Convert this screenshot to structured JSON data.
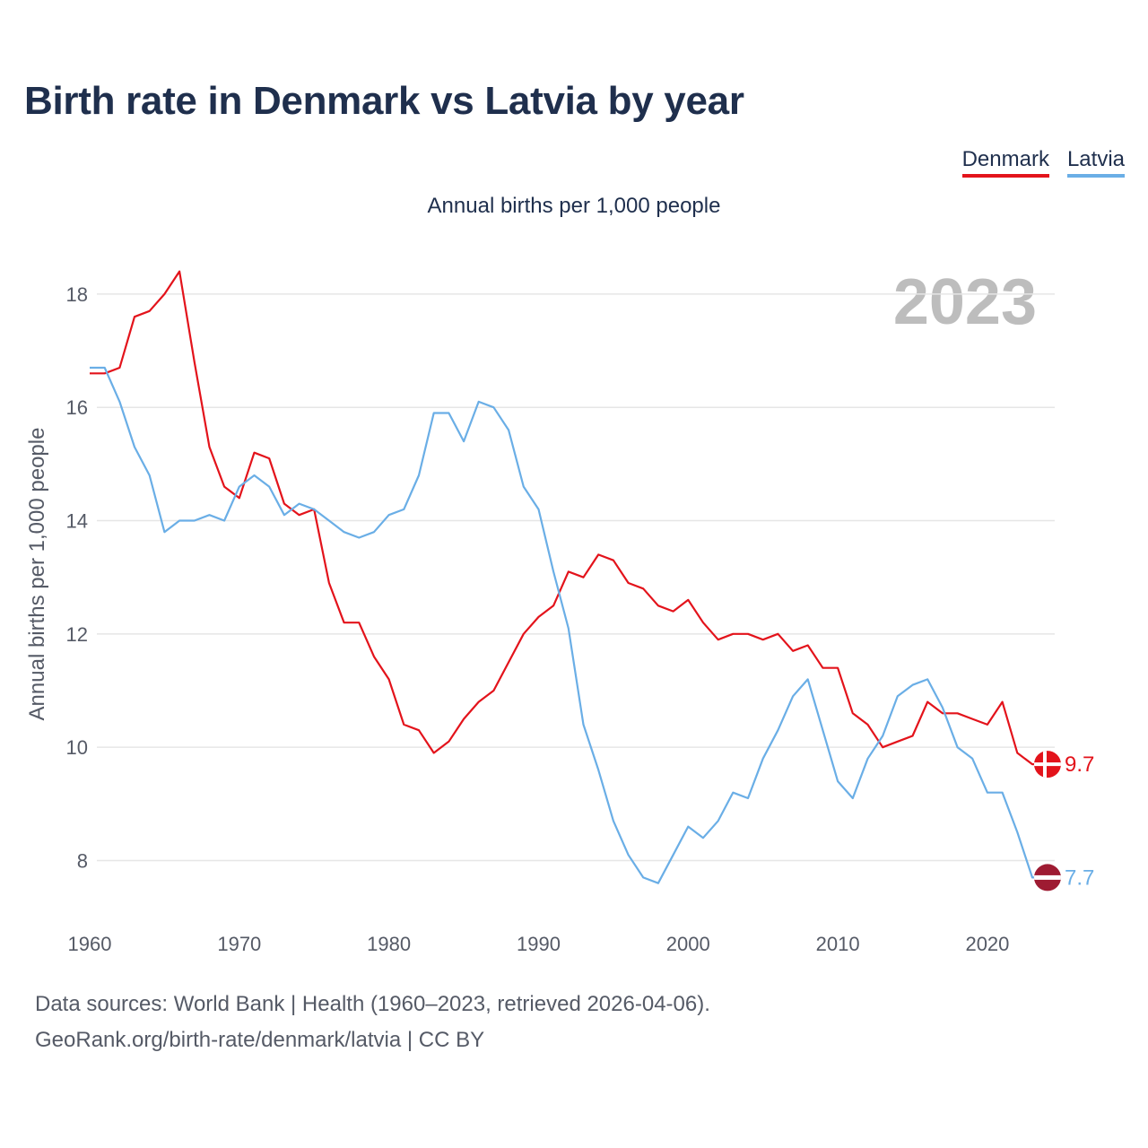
{
  "title": "Birth rate in Denmark vs Latvia by year",
  "legend": [
    {
      "name": "Denmark",
      "color": "#e3131b"
    },
    {
      "name": "Latvia",
      "color": "#6aaee6"
    }
  ],
  "current_year": "2023",
  "source": {
    "line1": "Data sources: World Bank | Health (1960–2023, retrieved 2026-04-06).",
    "line2": "GeoRank.org/birth-rate/denmark/latvia | CC BY"
  },
  "chart_data": {
    "type": "line",
    "title": "Annual births per 1,000 people",
    "xlabel": "",
    "ylabel": "Annual births per 1,000 people",
    "xlim": [
      1960,
      2024.5
    ],
    "ylim": [
      7.2,
      18.6
    ],
    "x_ticks": [
      1960,
      1970,
      1980,
      1990,
      2000,
      2010,
      2020
    ],
    "y_ticks": [
      8,
      10,
      12,
      14,
      16,
      18
    ],
    "grid": true,
    "x": [
      1960,
      1961,
      1962,
      1963,
      1964,
      1965,
      1966,
      1967,
      1968,
      1969,
      1970,
      1971,
      1972,
      1973,
      1974,
      1975,
      1976,
      1977,
      1978,
      1979,
      1980,
      1981,
      1982,
      1983,
      1984,
      1985,
      1986,
      1987,
      1988,
      1989,
      1990,
      1991,
      1992,
      1993,
      1994,
      1995,
      1996,
      1997,
      1998,
      1999,
      2000,
      2001,
      2002,
      2003,
      2004,
      2005,
      2006,
      2007,
      2008,
      2009,
      2010,
      2011,
      2012,
      2013,
      2014,
      2015,
      2016,
      2017,
      2018,
      2019,
      2020,
      2021,
      2022,
      2023
    ],
    "series": [
      {
        "name": "Denmark",
        "color": "#e3131b",
        "end_label": "9.7",
        "values": [
          16.6,
          16.6,
          16.7,
          17.6,
          17.7,
          18.0,
          18.4,
          16.8,
          15.3,
          14.6,
          14.4,
          15.2,
          15.1,
          14.3,
          14.1,
          14.2,
          12.9,
          12.2,
          12.2,
          11.6,
          11.2,
          10.4,
          10.3,
          9.9,
          10.1,
          10.5,
          10.8,
          11.0,
          11.5,
          12.0,
          12.3,
          12.5,
          13.1,
          13.0,
          13.4,
          13.3,
          12.9,
          12.8,
          12.5,
          12.4,
          12.6,
          12.2,
          11.9,
          12.0,
          12.0,
          11.9,
          12.0,
          11.7,
          11.8,
          11.4,
          11.4,
          10.6,
          10.4,
          10.0,
          10.1,
          10.2,
          10.8,
          10.6,
          10.6,
          10.5,
          10.4,
          10.8,
          9.9,
          9.7
        ]
      },
      {
        "name": "Latvia",
        "color": "#6aaee6",
        "end_label": "7.7",
        "values": [
          16.7,
          16.7,
          16.1,
          15.3,
          14.8,
          13.8,
          14.0,
          14.0,
          14.1,
          14.0,
          14.6,
          14.8,
          14.6,
          14.1,
          14.3,
          14.2,
          14.0,
          13.8,
          13.7,
          13.8,
          14.1,
          14.2,
          14.8,
          15.9,
          15.9,
          15.4,
          16.1,
          16.0,
          15.6,
          14.6,
          14.2,
          13.1,
          12.1,
          10.4,
          9.6,
          8.7,
          8.1,
          7.7,
          7.6,
          8.1,
          8.6,
          8.4,
          8.7,
          9.2,
          9.1,
          9.8,
          10.3,
          10.9,
          11.2,
          10.3,
          9.4,
          9.1,
          9.8,
          10.2,
          10.9,
          11.1,
          11.2,
          10.7,
          10.0,
          9.8,
          9.2,
          9.2,
          8.5,
          7.7
        ]
      }
    ]
  }
}
